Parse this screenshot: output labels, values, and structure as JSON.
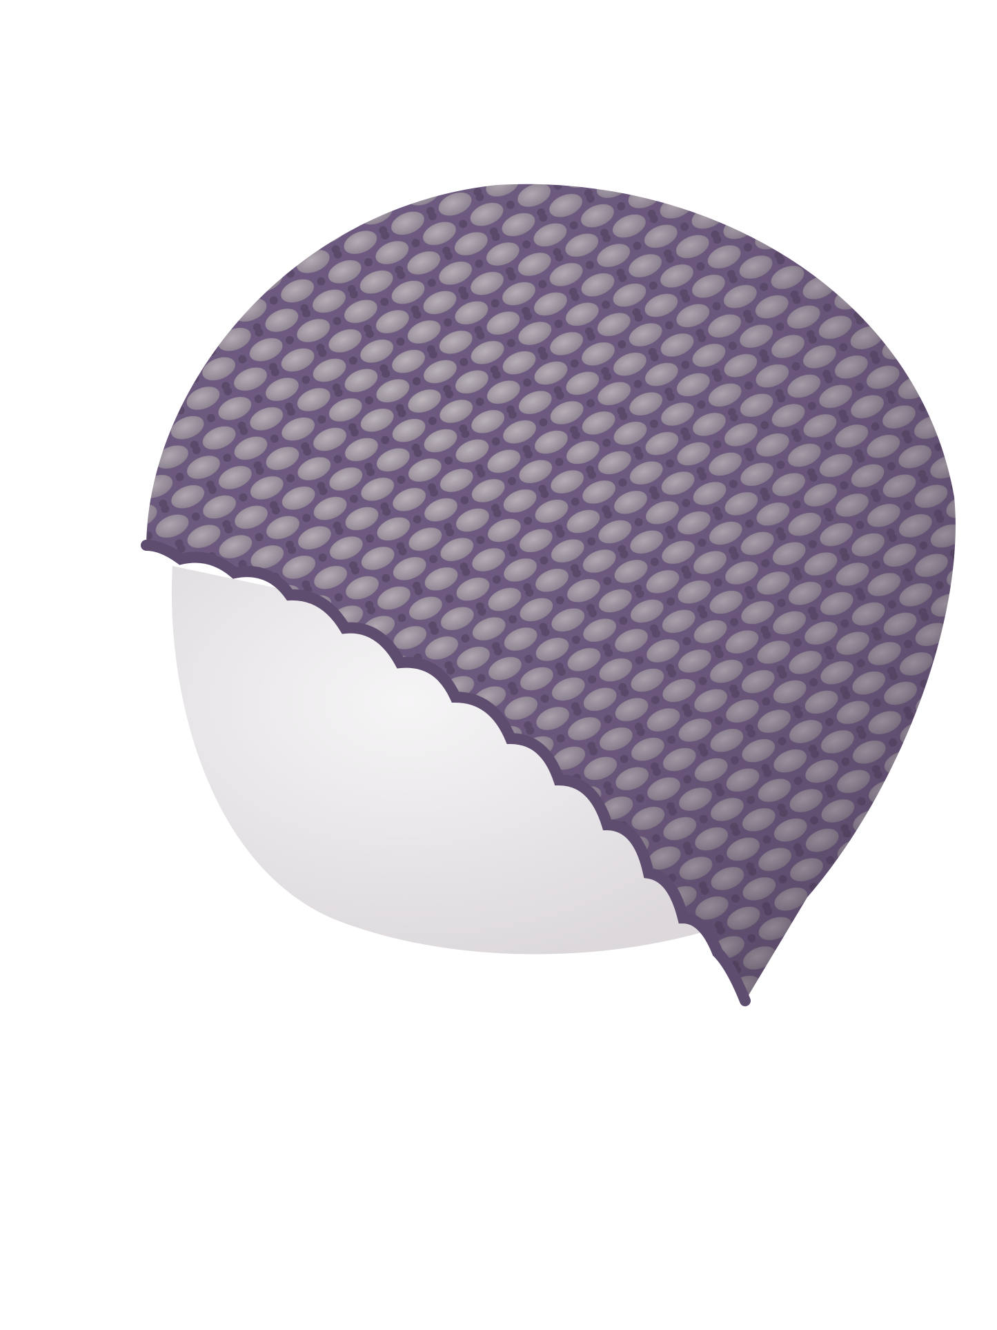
{
  "image": {
    "subject": "crocheted-mesh-beanie-on-mannequin-head",
    "colors": {
      "background": "#ffffff",
      "yarn": "#6e5a80",
      "yarn_dark": "#574766",
      "yarn_light": "#8a76a0",
      "mannequin": "#f1eff1",
      "mannequin_shadow": "#a9a2a8"
    }
  }
}
